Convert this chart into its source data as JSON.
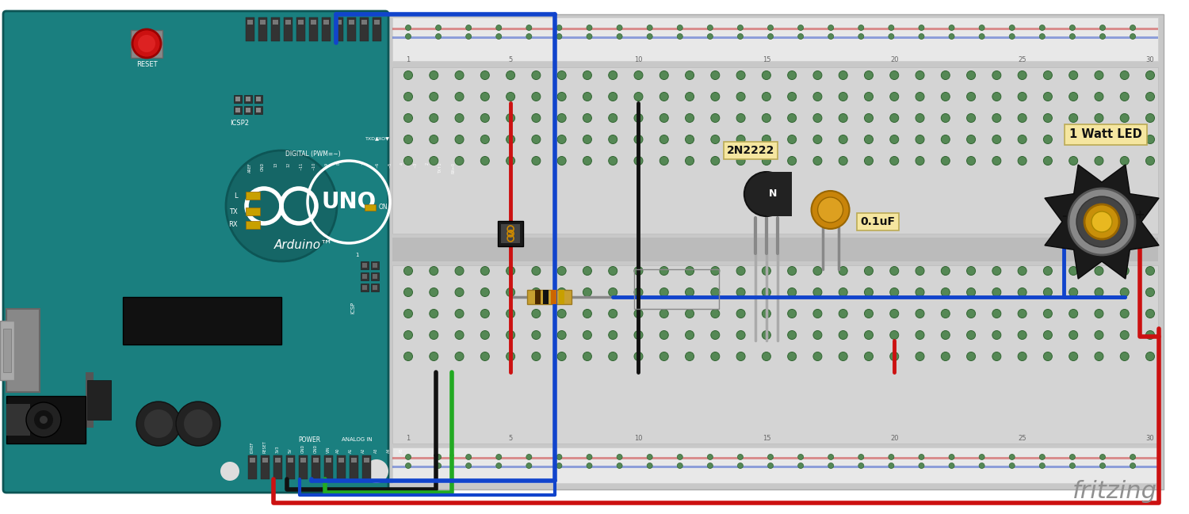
{
  "bg_color": "#ffffff",
  "arduino_teal": "#1a8a8a",
  "arduino_dark": "#157070",
  "breadboard_bg": "#c8c8c8",
  "breadboard_light": "#d8d8d8",
  "hole_color": "#228833",
  "hole_dark": "#116622",
  "wire_blue": "#1144cc",
  "wire_red": "#cc1111",
  "wire_black": "#111111",
  "wire_green": "#22aa22",
  "transistor_label": "2N2222",
  "capacitor_label": "0.1uF",
  "led_label": "1 Watt LED",
  "fritzing_text": "fritzing",
  "fritzing_color": "#909090",
  "label_bg": "#f5e6a0"
}
